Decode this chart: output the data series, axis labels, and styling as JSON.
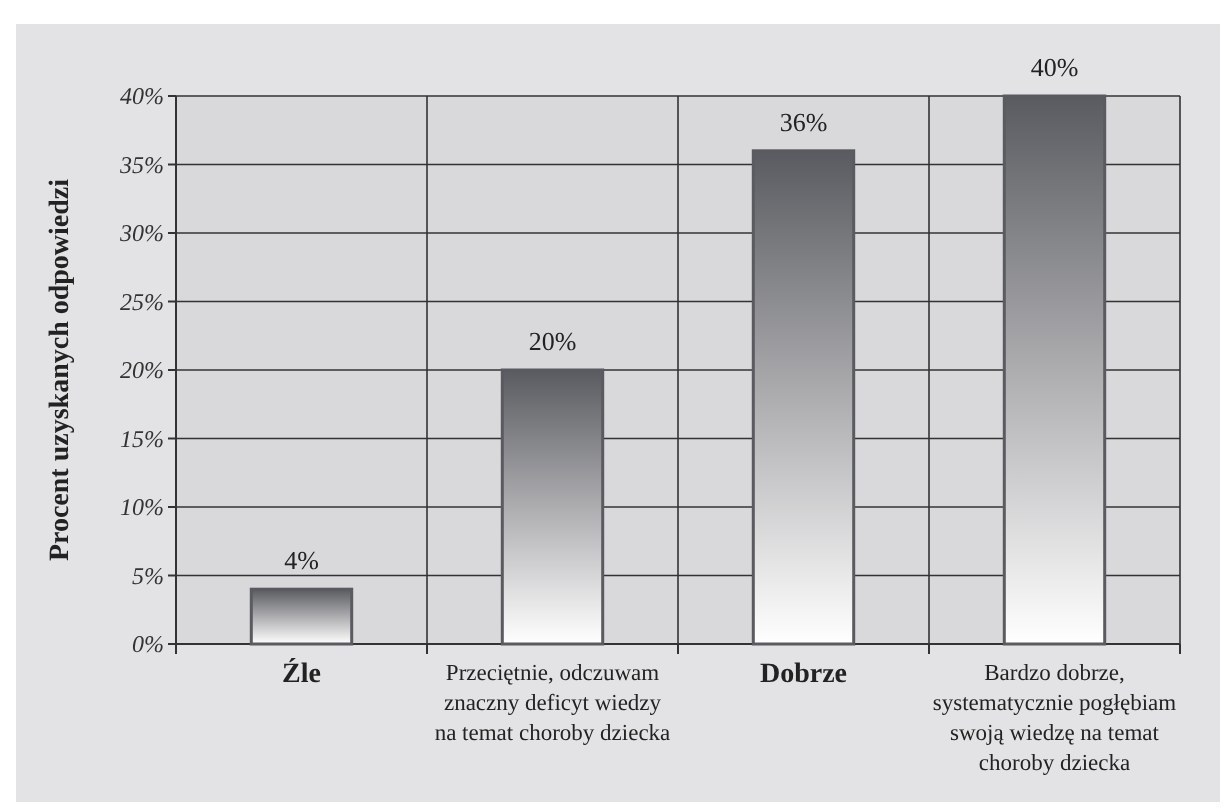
{
  "chart_data": {
    "type": "bar",
    "ylabel": "Procent uzyskanych odpowiedzi",
    "categories": [
      "Źle",
      "Przeciętnie, odczuwam\nznaczny deficyt wiedzy\nna temat choroby dziecka",
      "Dobrze",
      "Bardzo dobrze,\nsystematycznie pogłębiam\nswoją wiedzę na temat\nchoroby dziecka"
    ],
    "values": [
      4,
      20,
      36,
      40
    ],
    "value_labels": [
      "4%",
      "20%",
      "36%",
      "40%"
    ],
    "color": "#5a5b60",
    "ylim": [
      0,
      40
    ],
    "yticks": [
      {
        "value": 0,
        "label": "0%"
      },
      {
        "value": 5,
        "label": "5%"
      },
      {
        "value": 10,
        "label": "10%"
      },
      {
        "value": 15,
        "label": "15%"
      },
      {
        "value": 20,
        "label": "20%"
      },
      {
        "value": 25,
        "label": "25%"
      },
      {
        "value": 30,
        "label": "30%"
      },
      {
        "value": 35,
        "label": "35%"
      },
      {
        "value": 40,
        "label": "40%"
      }
    ],
    "grid": true
  }
}
